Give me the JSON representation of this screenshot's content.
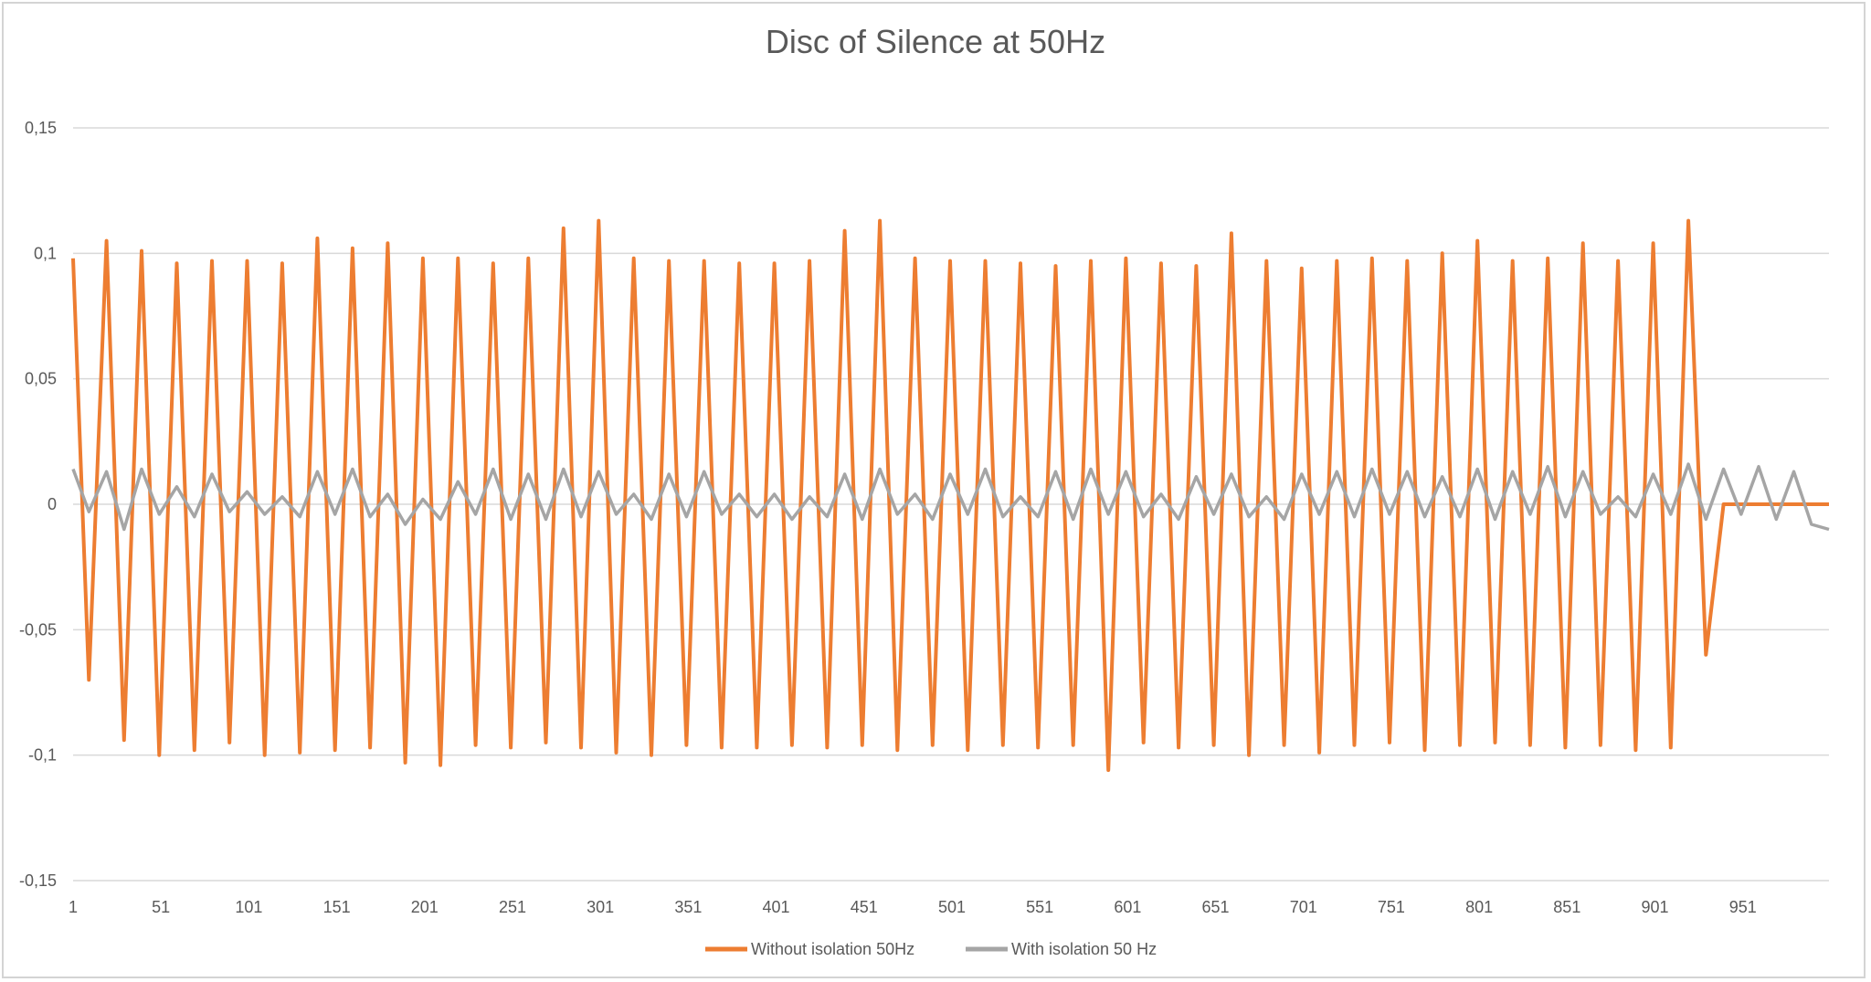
{
  "chart_data": {
    "type": "line",
    "title": "Disc of Silence at 50Hz",
    "xlabel": "",
    "ylabel": "",
    "x_range": [
      1,
      1000
    ],
    "x_tick_labels": [
      "1",
      "51",
      "101",
      "151",
      "201",
      "251",
      "301",
      "351",
      "401",
      "451",
      "501",
      "551",
      "601",
      "651",
      "701",
      "751",
      "801",
      "851",
      "901",
      "951"
    ],
    "x_tick_values": [
      1,
      51,
      101,
      151,
      201,
      251,
      301,
      351,
      401,
      451,
      501,
      551,
      601,
      651,
      701,
      751,
      801,
      851,
      901,
      951
    ],
    "ylim": [
      -0.15,
      0.15
    ],
    "y_tick_values": [
      0.15,
      0.1,
      0.05,
      0,
      -0.05,
      -0.1,
      -0.15
    ],
    "y_tick_labels": [
      "0,15",
      "0,1",
      "0,05",
      "0",
      "-0,05",
      "-0,1",
      "-0,15"
    ],
    "grid": true,
    "legend_position": "bottom",
    "series": [
      {
        "name": "Without isolation 50Hz",
        "color": "#ed7d31",
        "x": [
          1,
          10,
          20,
          30,
          40,
          50,
          60,
          70,
          80,
          90,
          100,
          110,
          120,
          130,
          140,
          150,
          160,
          170,
          180,
          190,
          200,
          210,
          220,
          230,
          240,
          250,
          260,
          270,
          280,
          290,
          300,
          310,
          320,
          330,
          340,
          350,
          360,
          370,
          380,
          390,
          400,
          410,
          420,
          430,
          440,
          450,
          460,
          470,
          480,
          490,
          500,
          510,
          520,
          530,
          540,
          550,
          560,
          570,
          580,
          590,
          600,
          610,
          620,
          630,
          640,
          650,
          660,
          670,
          680,
          690,
          700,
          710,
          720,
          730,
          740,
          750,
          760,
          770,
          780,
          790,
          800,
          810,
          820,
          830,
          840,
          850,
          860,
          870,
          880,
          890,
          900,
          910,
          920,
          930,
          940,
          950,
          960,
          970,
          980,
          990,
          1000
        ],
        "values": [
          0.098,
          -0.07,
          0.105,
          -0.094,
          0.101,
          -0.1,
          0.096,
          -0.098,
          0.097,
          -0.095,
          0.097,
          -0.1,
          0.096,
          -0.099,
          0.106,
          -0.098,
          0.102,
          -0.097,
          0.104,
          -0.103,
          0.098,
          -0.104,
          0.098,
          -0.096,
          0.096,
          -0.097,
          0.098,
          -0.095,
          0.11,
          -0.097,
          0.113,
          -0.099,
          0.098,
          -0.1,
          0.097,
          -0.096,
          0.097,
          -0.097,
          0.096,
          -0.097,
          0.096,
          -0.096,
          0.097,
          -0.097,
          0.109,
          -0.096,
          0.113,
          -0.098,
          0.098,
          -0.096,
          0.097,
          -0.098,
          0.097,
          -0.096,
          0.096,
          -0.097,
          0.095,
          -0.096,
          0.097,
          -0.106,
          0.098,
          -0.095,
          0.096,
          -0.097,
          0.095,
          -0.096,
          0.108,
          -0.1,
          0.097,
          -0.096,
          0.094,
          -0.099,
          0.097,
          -0.096,
          0.098,
          -0.095,
          0.097,
          -0.098,
          0.1,
          -0.096,
          0.105,
          -0.095,
          0.097,
          -0.096,
          0.098,
          -0.097,
          0.104,
          -0.096,
          0.097,
          -0.098,
          0.104,
          -0.097,
          0.113,
          -0.06,
          0.0,
          0.0,
          0.0,
          0.0,
          0.0,
          0.0,
          0.0
        ]
      },
      {
        "name": "With isolation 50 Hz",
        "color": "#a5a5a5",
        "x": [
          1,
          10,
          20,
          30,
          40,
          50,
          60,
          70,
          80,
          90,
          100,
          110,
          120,
          130,
          140,
          150,
          160,
          170,
          180,
          190,
          200,
          210,
          220,
          230,
          240,
          250,
          260,
          270,
          280,
          290,
          300,
          310,
          320,
          330,
          340,
          350,
          360,
          370,
          380,
          390,
          400,
          410,
          420,
          430,
          440,
          450,
          460,
          470,
          480,
          490,
          500,
          510,
          520,
          530,
          540,
          550,
          560,
          570,
          580,
          590,
          600,
          610,
          620,
          630,
          640,
          650,
          660,
          670,
          680,
          690,
          700,
          710,
          720,
          730,
          740,
          750,
          760,
          770,
          780,
          790,
          800,
          810,
          820,
          830,
          840,
          850,
          860,
          870,
          880,
          890,
          900,
          910,
          920,
          930,
          940,
          950,
          960,
          970,
          980,
          990,
          1000
        ],
        "values": [
          0.014,
          -0.003,
          0.013,
          -0.01,
          0.014,
          -0.004,
          0.007,
          -0.005,
          0.012,
          -0.003,
          0.005,
          -0.004,
          0.003,
          -0.005,
          0.013,
          -0.004,
          0.014,
          -0.005,
          0.004,
          -0.008,
          0.002,
          -0.006,
          0.009,
          -0.004,
          0.014,
          -0.006,
          0.012,
          -0.006,
          0.014,
          -0.005,
          0.013,
          -0.004,
          0.004,
          -0.006,
          0.012,
          -0.005,
          0.013,
          -0.004,
          0.004,
          -0.005,
          0.004,
          -0.006,
          0.003,
          -0.005,
          0.012,
          -0.006,
          0.014,
          -0.004,
          0.004,
          -0.006,
          0.012,
          -0.004,
          0.014,
          -0.005,
          0.003,
          -0.005,
          0.013,
          -0.006,
          0.014,
          -0.004,
          0.013,
          -0.005,
          0.004,
          -0.006,
          0.011,
          -0.004,
          0.012,
          -0.005,
          0.003,
          -0.006,
          0.012,
          -0.004,
          0.013,
          -0.005,
          0.014,
          -0.004,
          0.013,
          -0.005,
          0.011,
          -0.005,
          0.014,
          -0.006,
          0.013,
          -0.004,
          0.015,
          -0.005,
          0.013,
          -0.004,
          0.003,
          -0.005,
          0.012,
          -0.004,
          0.016,
          -0.006,
          0.014,
          -0.004,
          0.015,
          -0.006,
          0.013,
          -0.008,
          -0.01
        ]
      }
    ]
  }
}
